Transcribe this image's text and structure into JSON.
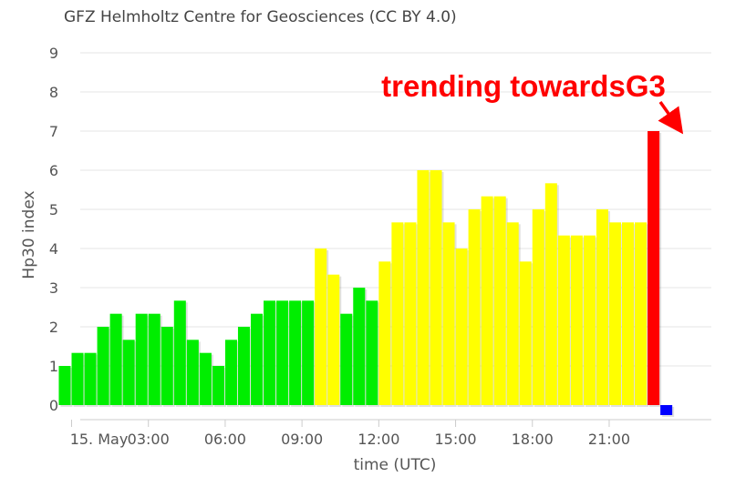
{
  "credit": "GFZ Helmholtz Centre for Geosciences (CC BY 4.0)",
  "chart_data": {
    "type": "bar",
    "ylabel": "Hp30 index",
    "xlabel": "time (UTC)",
    "ylim": [
      0,
      9
    ],
    "y_ticks": [
      0,
      1,
      2,
      3,
      4,
      5,
      6,
      7,
      8,
      9
    ],
    "x_ticks": [
      {
        "label": "15. May",
        "hour": 0
      },
      {
        "label": "03:00",
        "hour": 3
      },
      {
        "label": "06:00",
        "hour": 6
      },
      {
        "label": "09:00",
        "hour": 9
      },
      {
        "label": "12:00",
        "hour": 12
      },
      {
        "label": "15:00",
        "hour": 15
      },
      {
        "label": "18:00",
        "hour": 18
      },
      {
        "label": "21:00",
        "hour": 21
      }
    ],
    "interval_hours": 0.5,
    "start_hour": -0.5,
    "values": [
      1,
      1.333,
      1.333,
      2,
      2.333,
      1.667,
      2.333,
      2.333,
      2,
      2.667,
      1.667,
      1.333,
      1,
      1.667,
      2,
      2.333,
      2.667,
      2.667,
      2.667,
      2.667,
      4,
      3.333,
      2.333,
      3,
      2.667,
      3.667,
      4.667,
      4.667,
      6,
      6,
      4.667,
      4,
      5,
      5.333,
      5.333,
      4.667,
      3.667,
      5,
      5.667,
      4.333,
      4.333,
      4.333,
      5,
      4.667,
      4.667,
      4.667,
      7,
      0
    ],
    "colors": {
      "quiet": "#00ee00",
      "active": "#ffff00",
      "storm": "#ff0000",
      "pending": "#0000ff"
    },
    "annotation": "trending towardsG3"
  }
}
